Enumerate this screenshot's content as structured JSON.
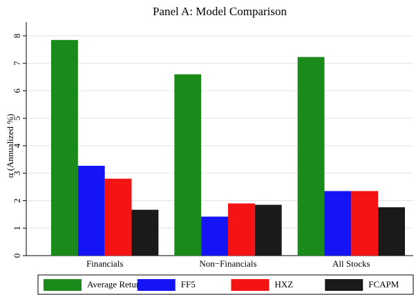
{
  "chart_data": {
    "type": "bar",
    "title": "Panel A: Model Comparison",
    "ylabel": "α (Annualized %)",
    "categories": [
      "Financials",
      "Non−Financials",
      "All Stocks"
    ],
    "series": [
      {
        "name": "Average Return",
        "color": "#1a8a1a",
        "values": [
          7.85,
          6.6,
          7.23
        ]
      },
      {
        "name": "FF5",
        "color": "#1414f5",
        "values": [
          3.27,
          1.42,
          2.35
        ]
      },
      {
        "name": "HXZ",
        "color": "#f51414",
        "values": [
          2.8,
          1.9,
          2.35
        ]
      },
      {
        "name": "FCAPM",
        "color": "#1a1a1a",
        "values": [
          1.67,
          1.85,
          1.76
        ]
      }
    ],
    "ylim": [
      0,
      8.5
    ],
    "yticks": [
      0,
      1,
      2,
      3,
      4,
      5,
      6,
      7,
      8
    ],
    "grid": true,
    "legend": "bottom"
  }
}
